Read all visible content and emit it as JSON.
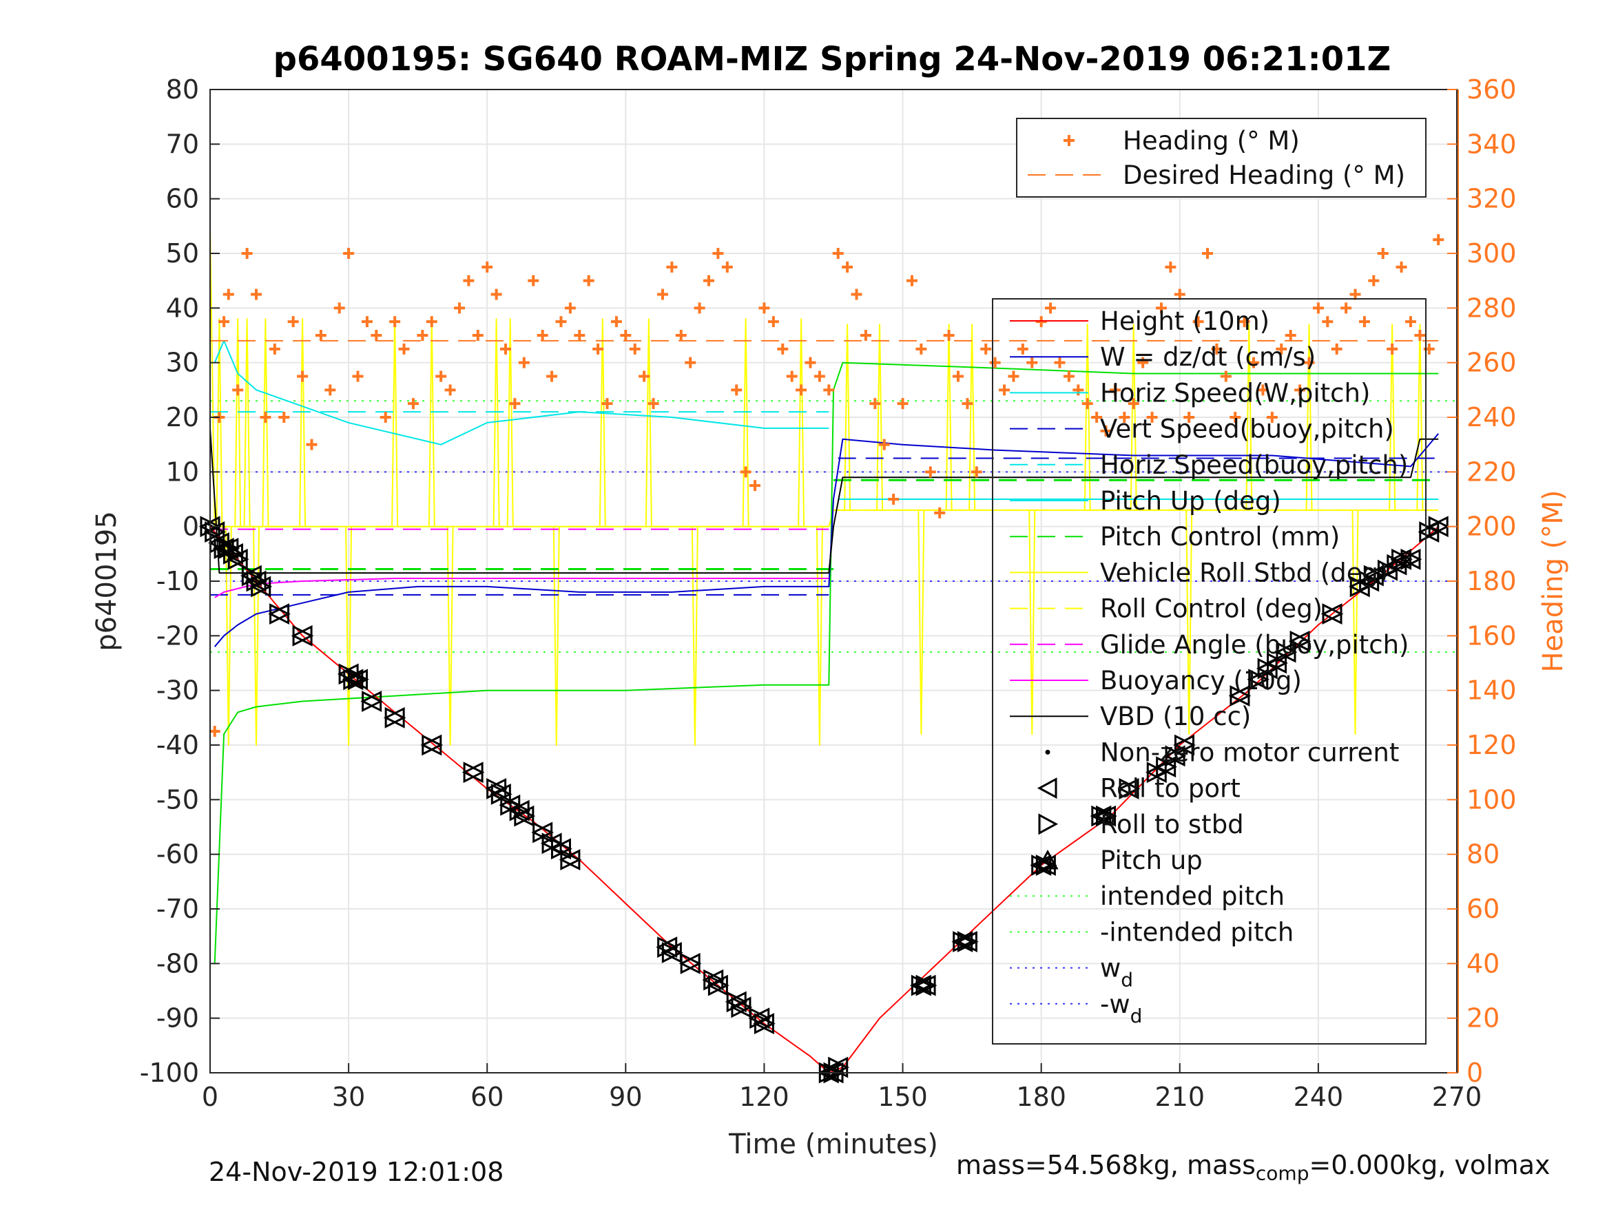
{
  "chart_data": {
    "type": "line",
    "title": "p6400195: SG640 ROAM-MIZ Spring 24-Nov-2019 06:21:01Z",
    "xlabel": "Time (minutes)",
    "ylabel": "p6400195",
    "y2label": "Heading (°M)",
    "xlim": [
      0,
      270
    ],
    "ylim": [
      -100,
      80
    ],
    "y2lim": [
      0,
      360
    ],
    "xticks": [
      "0",
      "30",
      "60",
      "90",
      "120",
      "150",
      "180",
      "210",
      "240",
      "270"
    ],
    "yticks": [
      "80",
      "70",
      "60",
      "50",
      "40",
      "30",
      "20",
      "10",
      "0",
      "-10",
      "-20",
      "-30",
      "-40",
      "-50",
      "-60",
      "-70",
      "-80",
      "-90",
      "-100"
    ],
    "y2ticks": [
      "360",
      "340",
      "320",
      "300",
      "280",
      "260",
      "240",
      "220",
      "200",
      "180",
      "160",
      "140",
      "120",
      "100",
      "80",
      "60",
      "40",
      "20",
      "0"
    ],
    "grid": true,
    "legend_top": {
      "placement": "top-right",
      "entries": [
        "Heading (° M)",
        "Desired Heading (° M)"
      ]
    },
    "legend_main": {
      "placement": "right",
      "entries": [
        "Height (10m)",
        "W = dz/dt (cm/s)",
        "Horiz Speed(W,pitch)",
        "Vert Speed(buoy,pitch)",
        "Horiz Speed(buoy,pitch)",
        "Pitch Up (deg)",
        "Pitch Control (mm)",
        "Vehicle Roll Stbd (deg)",
        "Roll Control (deg)",
        "Glide Angle (buoy,pitch)",
        "Buoyancy (10g)",
        "VBD (10 cc)",
        "Non-zero motor current",
        "Roll to port",
        "Roll to stbd",
        "Pitch up",
        "intended pitch",
        "-intended pitch",
        "w",
        "-w"
      ],
      "subscript": "d"
    },
    "colors": {
      "height": "#ff0000",
      "w": "#0000cc",
      "horiz_speed": "#00e6e6",
      "vert_speed": "#0000cc",
      "pitch": "#00e000",
      "roll": "#ffff00",
      "glide": "#ff00ff",
      "vbd": "#000000",
      "heading": "#ff7722",
      "intended": "#33ff33",
      "wd": "#3333ff"
    },
    "height_series": {
      "name": "Height (10m)",
      "x": [
        0,
        5,
        10,
        20,
        30,
        40,
        50,
        60,
        70,
        80,
        90,
        100,
        110,
        120,
        130,
        134,
        137,
        145,
        155,
        165,
        180,
        195,
        210,
        225,
        240,
        255,
        262,
        266
      ],
      "y": [
        0,
        -5,
        -10,
        -20,
        -27,
        -34,
        -41,
        -48,
        -54,
        -61,
        -69,
        -77,
        -84,
        -91,
        -97,
        -100,
        -99,
        -90,
        -82,
        -74,
        -62,
        -53,
        -40,
        -30,
        -18,
        -8,
        -3,
        0
      ]
    },
    "w_series": {
      "name": "W = dz/dt (cm/s)",
      "x": [
        1,
        3,
        6,
        10,
        20,
        30,
        45,
        60,
        80,
        100,
        120,
        134,
        135,
        137,
        150,
        170,
        200,
        230,
        260,
        266
      ],
      "y": [
        -22,
        -20,
        -18,
        -16,
        -14,
        -12,
        -11,
        -11,
        -12,
        -12,
        -11,
        -11,
        5,
        16,
        15,
        14,
        13,
        13,
        11,
        17
      ]
    },
    "horiz_speed_series": {
      "name": "Horiz Speed(W,pitch)",
      "x": [
        1,
        3,
        6,
        10,
        20,
        30,
        50,
        60,
        80,
        100,
        120,
        134
      ],
      "y": [
        30,
        34,
        28,
        25,
        22,
        19,
        15,
        19,
        21,
        20,
        18,
        18
      ]
    },
    "pitch_series": {
      "name": "Pitch Up (deg)",
      "x": [
        1,
        3,
        6,
        10,
        20,
        40,
        60,
        90,
        120,
        134,
        135,
        137,
        170,
        200,
        230,
        266
      ],
      "y": [
        -80,
        -38,
        -34,
        -33,
        -32,
        -31,
        -30,
        -30,
        -29,
        -29,
        25,
        30,
        29,
        28,
        28,
        28
      ]
    },
    "vbd_series": {
      "name": "VBD (10 cc)",
      "x": [
        0,
        2,
        134,
        135,
        137,
        260,
        262,
        266
      ],
      "y": [
        18,
        -8.5,
        -8.5,
        0,
        9,
        9,
        16,
        16
      ]
    },
    "buoyancy_series": {
      "name": "Buoyancy (10g)",
      "x": [
        1,
        3,
        10,
        20,
        40,
        60,
        100,
        134
      ],
      "y": [
        -13,
        -12,
        -10.5,
        -10,
        -9.5,
        -9.5,
        -9.5,
        -9.5
      ]
    },
    "pitch_control": {
      "name": "Pitch Control (mm)",
      "dive": -7.8,
      "climb": 8.5,
      "x_switch": 135
    },
    "glide_angle": {
      "name": "Glide Angle (buoy,pitch)",
      "value": -0.5,
      "x_end": 134
    },
    "vert_speed_buoy": {
      "name": "Vert Speed(buoy,pitch)",
      "dive": -12.5,
      "climb": 12.5
    },
    "horiz_speed_buoy": {
      "name": "Horiz Speed(buoy,pitch)",
      "dive": 21,
      "climb": 5
    },
    "roll_control": {
      "name": "Roll Control (deg)",
      "dive": 0,
      "climb": 3
    },
    "intended_pitch": {
      "value": 23
    },
    "w_d": {
      "value": 10
    },
    "desired_heading": {
      "name": "Desired Heading (° M)",
      "value": 268
    },
    "heading_series": {
      "name": "Heading (° M)",
      "x": [
        1,
        2,
        3,
        4,
        6,
        8,
        10,
        12,
        14,
        16,
        18,
        20,
        22,
        24,
        26,
        28,
        30,
        32,
        34,
        36,
        38,
        40,
        42,
        44,
        46,
        48,
        50,
        52,
        54,
        56,
        58,
        60,
        62,
        64,
        66,
        68,
        70,
        72,
        74,
        76,
        78,
        80,
        82,
        84,
        86,
        88,
        90,
        92,
        94,
        96,
        98,
        100,
        102,
        104,
        106,
        108,
        110,
        112,
        114,
        116,
        118,
        120,
        122,
        124,
        126,
        128,
        130,
        132,
        134,
        136,
        138,
        140,
        142,
        144,
        146,
        148,
        150,
        152,
        154,
        156,
        158,
        160,
        162,
        164,
        166,
        168,
        170,
        172,
        174,
        176,
        178,
        180,
        182,
        184,
        186,
        188,
        190,
        192,
        194,
        196,
        198,
        200,
        202,
        204,
        206,
        208,
        210,
        212,
        214,
        216,
        218,
        220,
        222,
        224,
        226,
        228,
        230,
        232,
        234,
        236,
        238,
        240,
        242,
        244,
        246,
        248,
        250,
        252,
        254,
        256,
        258,
        260,
        262,
        264,
        266
      ],
      "y": [
        125,
        240,
        275,
        285,
        250,
        300,
        285,
        240,
        265,
        240,
        275,
        255,
        230,
        270,
        250,
        280,
        300,
        255,
        275,
        270,
        240,
        275,
        265,
        245,
        270,
        275,
        255,
        250,
        280,
        290,
        270,
        295,
        285,
        265,
        245,
        260,
        290,
        270,
        255,
        275,
        280,
        270,
        290,
        265,
        245,
        275,
        270,
        265,
        255,
        245,
        285,
        295,
        270,
        260,
        280,
        290,
        300,
        295,
        250,
        220,
        215,
        280,
        275,
        265,
        255,
        250,
        260,
        255,
        250,
        300,
        295,
        285,
        270,
        245,
        230,
        210,
        245,
        290,
        265,
        220,
        205,
        270,
        255,
        245,
        220,
        265,
        260,
        250,
        255,
        265,
        260,
        275,
        280,
        260,
        255,
        250,
        245,
        240,
        235,
        250,
        240,
        245,
        260,
        240,
        280,
        295,
        285,
        240,
        275,
        300,
        265,
        255,
        240,
        275,
        260,
        250,
        240,
        265,
        270,
        250,
        260,
        280,
        275,
        265,
        280,
        285,
        275,
        290,
        300,
        265,
        295,
        275,
        270,
        265,
        305
      ]
    },
    "marker_series": {
      "name": "Roll to port / Roll to stbd / Pitch up",
      "x": [
        0,
        1,
        2,
        3,
        4,
        5,
        6,
        9,
        10,
        11,
        15,
        20,
        30,
        31,
        32,
        35,
        40,
        48,
        57,
        62,
        63,
        65,
        67,
        68,
        72,
        74,
        76,
        78,
        99,
        100,
        104,
        109,
        110,
        114,
        115,
        119,
        120,
        134,
        135,
        136,
        154,
        155,
        163,
        164,
        180,
        181,
        193,
        194,
        199,
        205,
        207,
        209,
        211,
        223,
        227,
        229,
        231,
        233,
        236,
        243,
        249,
        251,
        252,
        255,
        257,
        258,
        260,
        264,
        266
      ],
      "y": [
        0,
        -1,
        -3,
        -4,
        -4,
        -5,
        -6,
        -9,
        -10,
        -11,
        -16,
        -20,
        -27,
        -28,
        -28,
        -32,
        -35,
        -40,
        -45,
        -48,
        -49,
        -51,
        -52,
        -53,
        -56,
        -58,
        -59,
        -61,
        -77,
        -78,
        -80,
        -83,
        -84,
        -87,
        -88,
        -90,
        -91,
        -100,
        -100,
        -99,
        -84,
        -84,
        -76,
        -76,
        -62,
        -62,
        -53,
        -53,
        -48,
        -45,
        -44,
        -42,
        -40,
        -31,
        -28,
        -26,
        -25,
        -23,
        -21,
        -16,
        -11,
        -10,
        -9,
        -8,
        -7,
        -6,
        -6,
        -1,
        0
      ]
    }
  },
  "footer": {
    "date": "24-Nov-2019 12:01:08",
    "mass_prefix": "mass=54.568kg, mass",
    "mass_sub": "comp",
    "mass_suffix": "=0.000kg, volmax"
  }
}
